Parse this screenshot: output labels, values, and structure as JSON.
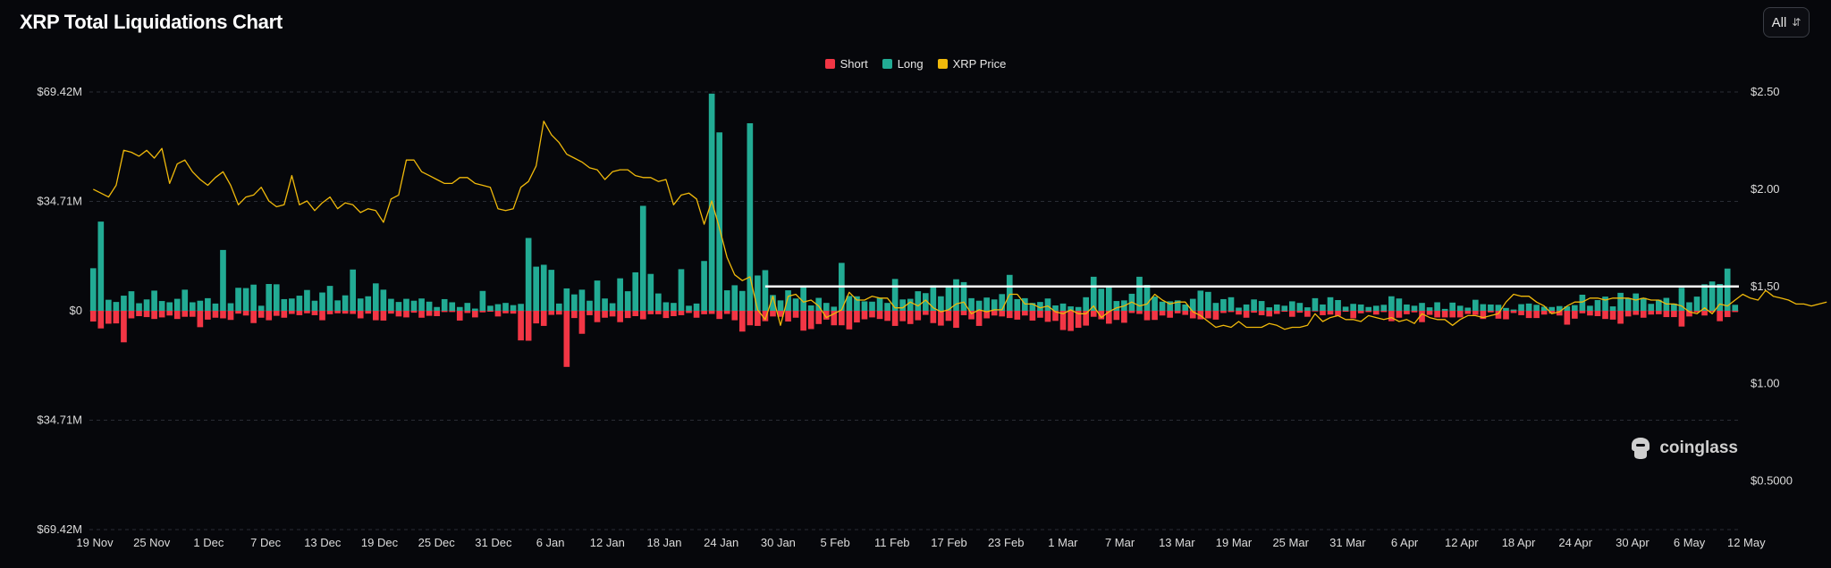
{
  "header": {
    "title": "XRP Total Liquidations Chart",
    "range_label": "All"
  },
  "colors": {
    "short": "#f23645",
    "long": "#22ab94",
    "price": "#f0b90b",
    "marker": "#ffffff"
  },
  "brand": {
    "name": "coinglass",
    "icon": "coinglass-logo-icon"
  },
  "chart_data": {
    "type": "bar",
    "title": "XRP Total Liquidations Chart",
    "legend": [
      "Short",
      "Long",
      "XRP Price"
    ],
    "legend_position": "top-center",
    "grid": true,
    "x_ticks": [
      "19 Nov",
      "25 Nov",
      "1 Dec",
      "7 Dec",
      "13 Dec",
      "19 Dec",
      "25 Dec",
      "31 Dec",
      "6 Jan",
      "12 Jan",
      "18 Jan",
      "24 Jan",
      "30 Jan",
      "5 Feb",
      "11 Feb",
      "17 Feb",
      "23 Feb",
      "1 Mar",
      "7 Mar",
      "13 Mar",
      "19 Mar",
      "25 Mar",
      "31 Mar",
      "6 Apr",
      "12 Apr",
      "18 Apr",
      "24 Apr",
      "30 Apr",
      "6 May",
      "12 May"
    ],
    "y_left_ticks": [
      "$69.42M",
      "$34.71M",
      "$0",
      "$34.71M",
      "$69.42M"
    ],
    "y_left_range": [
      -69.42,
      69.42
    ],
    "y_right_ticks": [
      "$2.50",
      "$2.00",
      "$1.50",
      "$1.00",
      "$0.5000"
    ],
    "y_right_range": [
      0.25,
      2.5
    ],
    "reference_line": {
      "value": 1.5,
      "start_index": 88
    },
    "series": [
      {
        "name": "Long",
        "values": [
          13.5,
          28.3,
          3.5,
          2.8,
          4.8,
          6.2,
          2.4,
          3.6,
          6.4,
          3.1,
          2.7,
          3.8,
          6.7,
          2.7,
          3.2,
          4,
          2.3,
          19.3,
          2.4,
          7.3,
          7.2,
          8.3,
          1.6,
          8.5,
          8.4,
          3.7,
          3.9,
          4.8,
          6.6,
          3.2,
          5.8,
          7.9,
          3.3,
          4.9,
          13.1,
          3.9,
          4.6,
          8.7,
          6.7,
          3.8,
          2.8,
          3.8,
          3.2,
          3.9,
          2.9,
          1.2,
          3.7,
          2.7,
          1.2,
          2.5,
          0.7,
          6.3,
          1.6,
          2.1,
          2.5,
          1.8,
          2.2,
          23.1,
          14,
          14.6,
          13,
          2.3,
          7.1,
          5.2,
          6.7,
          3.2,
          9.6,
          3.9,
          2.4,
          10.3,
          6.2,
          12.2,
          33.3,
          11.7,
          5.5,
          2.7,
          2.5,
          13.2,
          1.6,
          2.3,
          15.8,
          68.9,
          56.6,
          6.5,
          8.1,
          6.3,
          59.5,
          11.2,
          12.9,
          5,
          3.3,
          6.5,
          3.9,
          7.4,
          1.7,
          4.1,
          2.5,
          1.3,
          15.2,
          4.7,
          4.6,
          3,
          2.9,
          4.1,
          2.5,
          10.1,
          3.6,
          3.8,
          6.2,
          5.6,
          8.1,
          4.6,
          7.6,
          10,
          9.1,
          4,
          3.2,
          4.2,
          3.6,
          5.3,
          11.4,
          3.7,
          4,
          2.5,
          2.8,
          3.9,
          1.7,
          2.3,
          1.4,
          1.2,
          4.3,
          10.8,
          7,
          7.7,
          3.1,
          3.3,
          5.4,
          10.8,
          8.2,
          4.5,
          2.9,
          3,
          3.3,
          2,
          3.8,
          6.4,
          6,
          2.5,
          3.7,
          4.3,
          1,
          2,
          3.6,
          3.1,
          1.1,
          2,
          1.6,
          3,
          2.5,
          1.1,
          4,
          2,
          4.3,
          3.4,
          1.3,
          2.2,
          2,
          1.2,
          1.6,
          1.9,
          4.6,
          3.9,
          2,
          1.6,
          2.5,
          1.1,
          2.7,
          0.6,
          2.6,
          1.6,
          1,
          3.5,
          2.1,
          2,
          1.9,
          0.9,
          0.4,
          2.1,
          2.3,
          1.9,
          1.3,
          1.2,
          1.5,
          1.4,
          1.8,
          5.1,
          1.6,
          3.4,
          4.5,
          1.4,
          5.7,
          4,
          5.5,
          4.1,
          2.2,
          3.5,
          4.1,
          2.3,
          7.3,
          2.7,
          4.5,
          8.4,
          9.3,
          8.5,
          13.4,
          1.9
        ]
      },
      {
        "name": "Short",
        "values": [
          3.4,
          5.6,
          4.1,
          4,
          10,
          2.4,
          1.7,
          2,
          2.6,
          2.1,
          1.5,
          2.6,
          1.9,
          1.9,
          5.2,
          2.8,
          2.2,
          2.4,
          2.9,
          0.9,
          1.5,
          3.9,
          2.2,
          3,
          1.6,
          2.2,
          1,
          1.4,
          0.8,
          1.4,
          3,
          1.1,
          0.8,
          0.9,
          1,
          2.4,
          0.9,
          3,
          3.1,
          0.9,
          1.8,
          2.1,
          0.6,
          2.2,
          1.6,
          1.7,
          0.4,
          0.4,
          3.1,
          0.7,
          2.1,
          0.5,
          0.3,
          1.8,
          0.8,
          0.9,
          9.4,
          9.5,
          4,
          4.8,
          1.3,
          1.2,
          17.8,
          2.3,
          7.3,
          1.4,
          3.6,
          2.2,
          1.8,
          3.6,
          2.3,
          1.7,
          2.7,
          1.1,
          1.1,
          2.3,
          1.7,
          1.4,
          0.7,
          2.2,
          1.1,
          1,
          2.6,
          1,
          3,
          6.6,
          4.6,
          4.8,
          3.3,
          1.8,
          1.9,
          3.4,
          2.2,
          6.3,
          5.8,
          4.2,
          2.8,
          4.6,
          4.6,
          5.9,
          3.7,
          2.7,
          2.1,
          2.6,
          3.2,
          4.8,
          3.3,
          4.2,
          3,
          1.3,
          3.9,
          4.7,
          3.2,
          5.4,
          1.4,
          2.7,
          4.8,
          2.4,
          1.5,
          1.8,
          2.3,
          2.8,
          1.5,
          3.1,
          2.2,
          3.5,
          3.2,
          6.1,
          6.4,
          5.4,
          4.7,
          1.9,
          2.7,
          4.1,
          2.9,
          3.8,
          0.7,
          1,
          3,
          2.9,
          1.5,
          2.2,
          0.8,
          1.3,
          2.4,
          2.7,
          2.4,
          2.8,
          0.7,
          0.4,
          1.2,
          2.2,
          0.6,
          1.4,
          1.8,
          1,
          0.3,
          1.9,
          0.6,
          1.9,
          0.2,
          1.4,
          1.2,
          1.6,
          0.3,
          2.4,
          0.8,
          0.4,
          1.2,
          0.4,
          3.3,
          2.2,
          1.1,
          0.5,
          3.6,
          1.3,
          2.1,
          2.1,
          2.1,
          2.1,
          1,
          1.3,
          2.6,
          0.5,
          2.5,
          2.7,
          0.7,
          1.4,
          2.3,
          2.3,
          1.2,
          0.9,
          1.5,
          4.4,
          2.5,
          0.8,
          1.5,
          1.7,
          2.6,
          2.8,
          4.1,
          1.8,
          1.3,
          2.2,
          1.2,
          1.1,
          2,
          2,
          5,
          1.8,
          0.5,
          1.5,
          0.4,
          3.3,
          2,
          0.4,
          0.2,
          0.7,
          1.2,
          2.7
        ]
      },
      {
        "name": "XRP Price",
        "values": [
          2,
          1.98,
          1.96,
          2.02,
          2.2,
          2.19,
          2.17,
          2.2,
          2.16,
          2.21,
          2.03,
          2.13,
          2.15,
          2.09,
          2.05,
          2.02,
          2.06,
          2.09,
          2.02,
          1.92,
          1.96,
          1.97,
          2.01,
          1.94,
          1.91,
          1.92,
          2.07,
          1.92,
          1.94,
          1.89,
          1.93,
          1.96,
          1.9,
          1.93,
          1.92,
          1.88,
          1.9,
          1.89,
          1.83,
          1.95,
          1.97,
          2.15,
          2.15,
          2.09,
          2.07,
          2.05,
          2.03,
          2.03,
          2.06,
          2.06,
          2.03,
          2.02,
          2.01,
          1.9,
          1.89,
          1.9,
          2.01,
          2.04,
          2.12,
          2.35,
          2.28,
          2.24,
          2.18,
          2.16,
          2.14,
          2.11,
          2.1,
          2.05,
          2.09,
          2.1,
          2.1,
          2.07,
          2.06,
          2.06,
          2.04,
          2.05,
          1.92,
          1.97,
          1.98,
          1.95,
          1.82,
          1.94,
          1.8,
          1.65,
          1.56,
          1.53,
          1.55,
          1.38,
          1.33,
          1.45,
          1.3,
          1.45,
          1.46,
          1.42,
          1.43,
          1.4,
          1.34,
          1.36,
          1.38,
          1.47,
          1.43,
          1.43,
          1.45,
          1.44,
          1.44,
          1.39,
          1.39,
          1.42,
          1.4,
          1.43,
          1.39,
          1.37,
          1.38,
          1.41,
          1.42,
          1.36,
          1.38,
          1.37,
          1.38,
          1.38,
          1.46,
          1.46,
          1.41,
          1.41,
          1.39,
          1.4,
          1.37,
          1.36,
          1.38,
          1.36,
          1.36,
          1.4,
          1.34,
          1.37,
          1.39,
          1.4,
          1.42,
          1.4,
          1.41,
          1.46,
          1.43,
          1.41,
          1.42,
          1.42,
          1.37,
          1.35,
          1.32,
          1.29,
          1.3,
          1.29,
          1.32,
          1.29,
          1.29,
          1.29,
          1.31,
          1.3,
          1.28,
          1.29,
          1.29,
          1.3,
          1.36,
          1.32,
          1.34,
          1.35,
          1.33,
          1.33,
          1.32,
          1.35,
          1.34,
          1.33,
          1.34,
          1.32,
          1.33,
          1.31,
          1.36,
          1.34,
          1.33,
          1.33,
          1.3,
          1.33,
          1.35,
          1.35,
          1.34,
          1.35,
          1.36,
          1.42,
          1.46,
          1.45,
          1.45,
          1.42,
          1.4,
          1.36,
          1.37,
          1.4,
          1.42,
          1.42,
          1.44,
          1.44,
          1.43,
          1.44,
          1.44,
          1.44,
          1.43,
          1.44,
          1.43,
          1.43,
          1.41,
          1.41,
          1.4,
          1.37,
          1.36,
          1.39,
          1.36,
          1.41,
          1.4,
          1.43,
          1.46,
          1.44,
          1.43,
          1.48,
          1.45,
          1.44,
          1.43,
          1.41,
          1.41,
          1.4,
          1.41,
          1.42
        ]
      }
    ]
  }
}
